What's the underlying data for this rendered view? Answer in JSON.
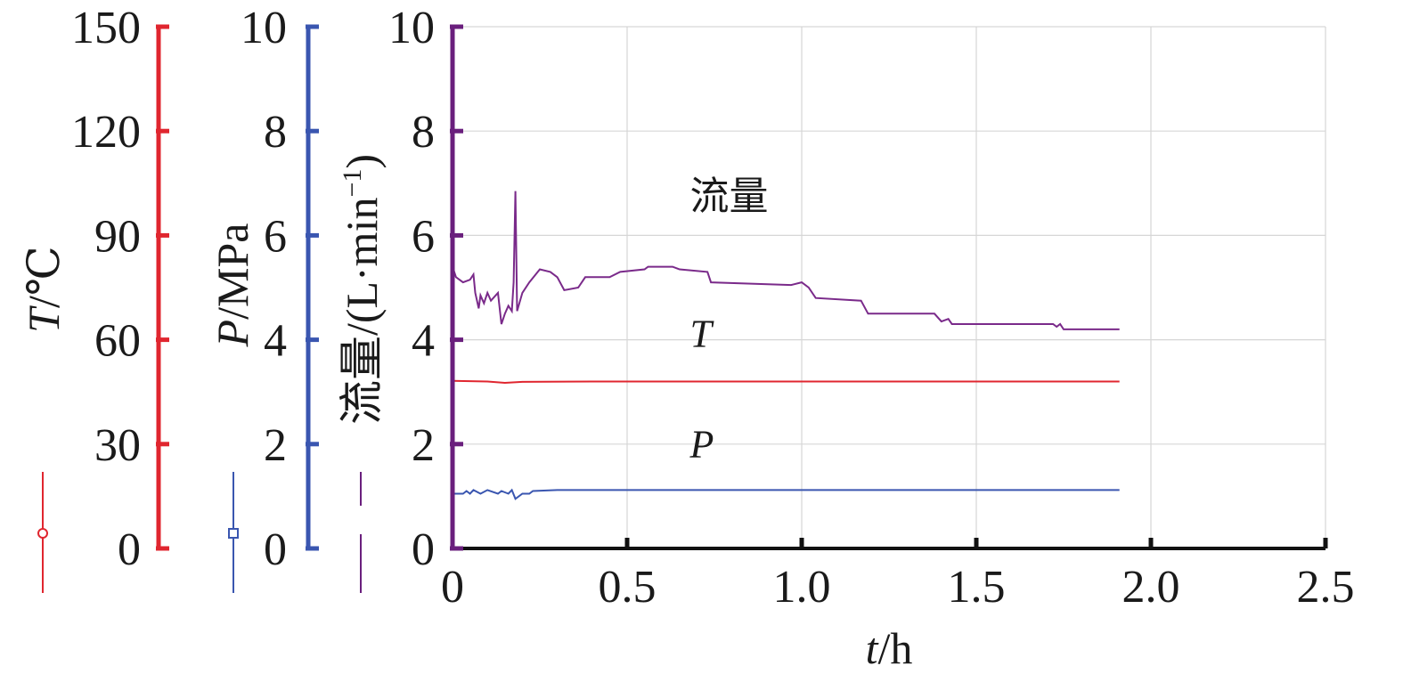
{
  "chart_data": {
    "type": "line",
    "x_axis": {
      "label_var": "t",
      "label_unit": "/h",
      "range": [
        0,
        2.5
      ],
      "ticks": [
        "0",
        "0.5",
        "1.0",
        "1.5",
        "2.0",
        "2.5"
      ]
    },
    "y_axes": [
      {
        "key": "T",
        "label_var": "T",
        "label_unit": "/℃",
        "range": [
          0,
          150
        ],
        "ticks": [
          "0",
          "30",
          "60",
          "90",
          "120",
          "150"
        ],
        "color": "#e0262f",
        "legend_marker": "circle"
      },
      {
        "key": "P",
        "label_var": "P",
        "label_unit": "/MPa",
        "range": [
          0,
          10
        ],
        "ticks": [
          "0",
          "2",
          "4",
          "6",
          "8",
          "10"
        ],
        "color": "#3a56b0",
        "legend_marker": "square"
      },
      {
        "key": "flow",
        "label_var": "",
        "label_unit": "流量/(L·min",
        "label_sup": "−1",
        "label_close": ")",
        "range": [
          0,
          10
        ],
        "ticks": [
          "0",
          "2",
          "4",
          "6",
          "8",
          "10"
        ],
        "color": "#6a1f7d",
        "legend_marker": "none"
      }
    ],
    "grid": true,
    "series": [
      {
        "name": "流量",
        "axis": "flow",
        "color": "#7a2a8a",
        "label_at": [
          0.68,
          6.5
        ],
        "points": [
          [
            0.0,
            5.4
          ],
          [
            0.01,
            5.2
          ],
          [
            0.03,
            5.1
          ],
          [
            0.05,
            5.15
          ],
          [
            0.06,
            5.25
          ],
          [
            0.065,
            4.9
          ],
          [
            0.075,
            4.6
          ],
          [
            0.08,
            4.85
          ],
          [
            0.09,
            4.7
          ],
          [
            0.1,
            4.9
          ],
          [
            0.11,
            4.75
          ],
          [
            0.13,
            4.9
          ],
          [
            0.14,
            4.3
          ],
          [
            0.15,
            4.5
          ],
          [
            0.16,
            4.65
          ],
          [
            0.17,
            4.55
          ],
          [
            0.175,
            5.1
          ],
          [
            0.18,
            6.85
          ],
          [
            0.185,
            4.55
          ],
          [
            0.2,
            4.9
          ],
          [
            0.22,
            5.1
          ],
          [
            0.25,
            5.35
          ],
          [
            0.28,
            5.3
          ],
          [
            0.3,
            5.2
          ],
          [
            0.32,
            4.95
          ],
          [
            0.36,
            5.0
          ],
          [
            0.38,
            5.2
          ],
          [
            0.45,
            5.2
          ],
          [
            0.48,
            5.3
          ],
          [
            0.55,
            5.35
          ],
          [
            0.56,
            5.4
          ],
          [
            0.63,
            5.4
          ],
          [
            0.65,
            5.35
          ],
          [
            0.73,
            5.3
          ],
          [
            0.74,
            5.1
          ],
          [
            0.97,
            5.05
          ],
          [
            1.0,
            5.1
          ],
          [
            1.02,
            5.0
          ],
          [
            1.04,
            4.8
          ],
          [
            1.17,
            4.75
          ],
          [
            1.19,
            4.5
          ],
          [
            1.38,
            4.5
          ],
          [
            1.4,
            4.35
          ],
          [
            1.42,
            4.4
          ],
          [
            1.43,
            4.3
          ],
          [
            1.72,
            4.3
          ],
          [
            1.73,
            4.25
          ],
          [
            1.74,
            4.3
          ],
          [
            1.75,
            4.2
          ],
          [
            1.91,
            4.2
          ]
        ]
      },
      {
        "name": "T",
        "axis": "T",
        "color": "#e0262f",
        "label_at": [
          0.68,
          58
        ],
        "points": [
          [
            0.0,
            48.2
          ],
          [
            0.1,
            48.0
          ],
          [
            0.15,
            47.6
          ],
          [
            0.2,
            47.9
          ],
          [
            0.4,
            48.0
          ],
          [
            1.0,
            48.0
          ],
          [
            1.91,
            48.0
          ]
        ]
      },
      {
        "name": "P",
        "axis": "P",
        "color": "#3a56b0",
        "label_at": [
          0.68,
          1.75
        ],
        "points": [
          [
            0.0,
            1.05
          ],
          [
            0.03,
            1.05
          ],
          [
            0.04,
            1.1
          ],
          [
            0.05,
            1.05
          ],
          [
            0.06,
            1.12
          ],
          [
            0.08,
            1.05
          ],
          [
            0.1,
            1.12
          ],
          [
            0.13,
            1.05
          ],
          [
            0.14,
            1.1
          ],
          [
            0.16,
            1.05
          ],
          [
            0.17,
            1.12
          ],
          [
            0.18,
            0.95
          ],
          [
            0.2,
            1.05
          ],
          [
            0.22,
            1.05
          ],
          [
            0.23,
            1.1
          ],
          [
            0.3,
            1.12
          ],
          [
            1.0,
            1.12
          ],
          [
            1.91,
            1.12
          ]
        ]
      }
    ]
  }
}
